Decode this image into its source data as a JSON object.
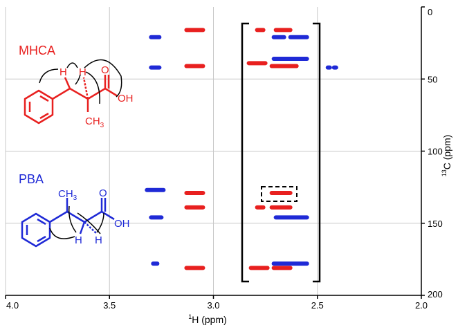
{
  "chart_data": {
    "type": "scatter",
    "title": "",
    "xlabel_sup": "1",
    "xlabel_main": "H (ppm)",
    "ylabel_sup": "13",
    "ylabel_main": "C (ppm)",
    "xlim": [
      4.0,
      2.0
    ],
    "ylim": [
      0,
      200
    ],
    "x_ticks": [
      4.0,
      3.5,
      3.0,
      2.5,
      2.0
    ],
    "x_tick_labels": [
      "4.0",
      "3.5",
      "3.0",
      "2.5",
      "2.0"
    ],
    "y_ticks": [
      0,
      50,
      100,
      150,
      200
    ],
    "y_tick_labels": [
      "0",
      "50",
      "100",
      "150",
      "200"
    ],
    "grid": true,
    "colors": {
      "red": "#e8201f",
      "blue": "#1f2ad6",
      "grid": "#c8c8c8",
      "axis": "#000000"
    },
    "series": [
      {
        "color": "red",
        "peaks": [
          {
            "x_start": 3.13,
            "x_end": 3.05,
            "y": 16
          },
          {
            "x_start": 3.13,
            "x_end": 3.05,
            "y": 41
          },
          {
            "x_start": 3.13,
            "x_end": 3.05,
            "y": 129
          },
          {
            "x_start": 3.13,
            "x_end": 3.05,
            "y": 139
          },
          {
            "x_start": 3.13,
            "x_end": 3.05,
            "y": 181
          },
          {
            "x_start": 2.79,
            "x_end": 2.76,
            "y": 16
          },
          {
            "x_start": 2.7,
            "x_end": 2.63,
            "y": 16
          },
          {
            "x_start": 2.83,
            "x_end": 2.75,
            "y": 39
          },
          {
            "x_start": 2.72,
            "x_end": 2.6,
            "y": 41
          },
          {
            "x_start": 2.72,
            "x_end": 2.63,
            "y": 129
          },
          {
            "x_start": 2.79,
            "x_end": 2.76,
            "y": 139
          },
          {
            "x_start": 2.72,
            "x_end": 2.63,
            "y": 139
          },
          {
            "x_start": 2.82,
            "x_end": 2.74,
            "y": 181
          },
          {
            "x_start": 2.71,
            "x_end": 2.63,
            "y": 181
          }
        ]
      },
      {
        "color": "blue",
        "peaks": [
          {
            "x_start": 3.3,
            "x_end": 3.26,
            "y": 21
          },
          {
            "x_start": 3.3,
            "x_end": 3.26,
            "y": 42
          },
          {
            "x_start": 3.32,
            "x_end": 3.24,
            "y": 127
          },
          {
            "x_start": 3.3,
            "x_end": 3.25,
            "y": 146
          },
          {
            "x_start": 3.29,
            "x_end": 3.27,
            "y": 178
          },
          {
            "x_start": 2.71,
            "x_end": 2.66,
            "y": 21
          },
          {
            "x_start": 2.63,
            "x_end": 2.55,
            "y": 21
          },
          {
            "x_start": 2.71,
            "x_end": 2.55,
            "y": 36
          },
          {
            "x_start": 2.45,
            "x_end": 2.44,
            "y": 42
          },
          {
            "x_start": 2.42,
            "x_end": 2.41,
            "y": 42
          },
          {
            "x_start": 2.7,
            "x_end": 2.55,
            "y": 146
          },
          {
            "x_start": 2.71,
            "x_end": 2.55,
            "y": 178
          }
        ]
      }
    ],
    "annotations": {
      "mhca_label": "MHCA",
      "pba_label": "PBA",
      "mhca_methyl": "CH",
      "mhca_methyl_sub": "3",
      "pba_methyl": "CH",
      "pba_methyl_sub": "3",
      "oh": "OH",
      "o": "O",
      "h": "H"
    }
  }
}
